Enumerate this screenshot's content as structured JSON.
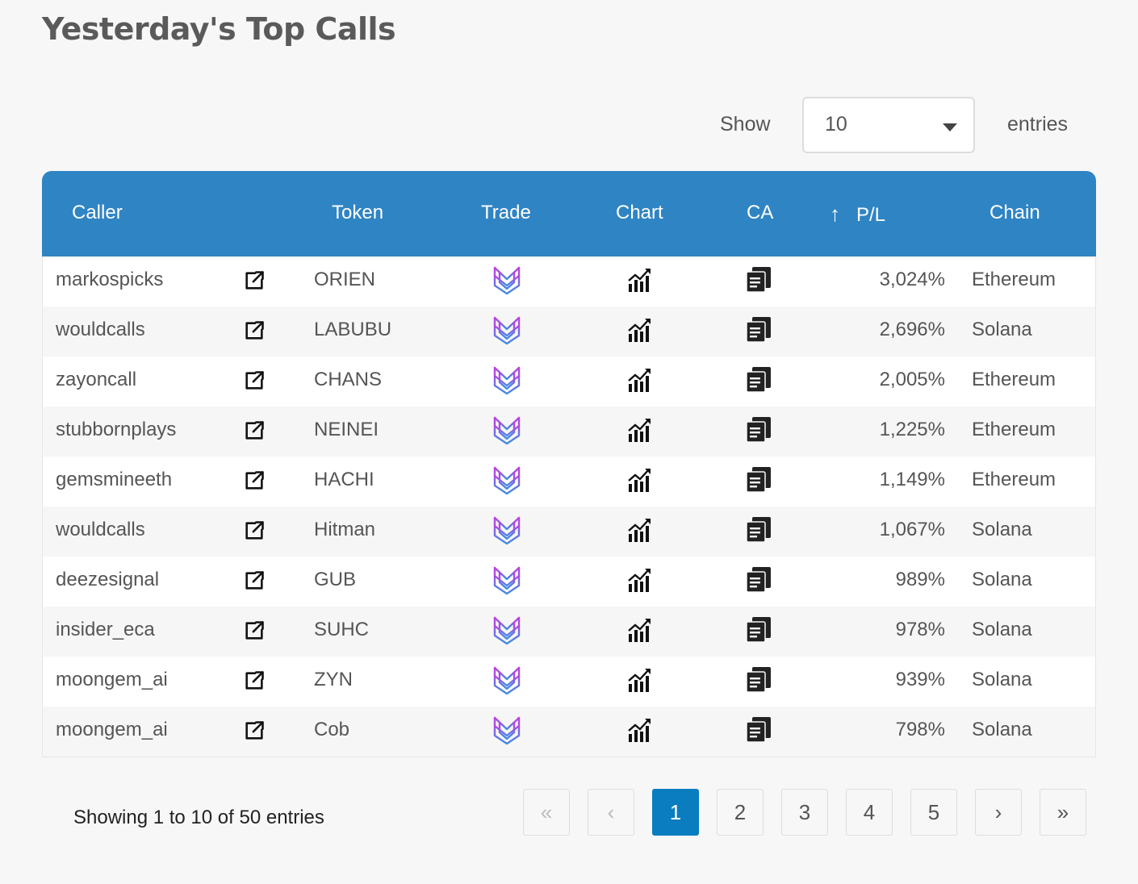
{
  "title": "Yesterday's Top Calls",
  "length_control": {
    "show_label": "Show",
    "selected": "10",
    "entries_label": "entries"
  },
  "columns": {
    "caller": "Caller",
    "token": "Token",
    "trade": "Trade",
    "chart": "Chart",
    "ca": "CA",
    "pl": "P/L",
    "chain": "Chain"
  },
  "sort": {
    "column": "P/L",
    "direction": "descending",
    "icon": "arrow-up-icon"
  },
  "rows": [
    {
      "caller": "markospicks",
      "token": "ORIEN",
      "pl": "3,024%",
      "chain": "Ethereum"
    },
    {
      "caller": "wouldcalls",
      "token": "LABUBU",
      "pl": "2,696%",
      "chain": "Solana"
    },
    {
      "caller": "zayoncall",
      "token": "CHANS",
      "pl": "2,005%",
      "chain": "Ethereum"
    },
    {
      "caller": "stubbornplays",
      "token": "NEINEI",
      "pl": "1,225%",
      "chain": "Ethereum"
    },
    {
      "caller": "gemsmineeth",
      "token": "HACHI",
      "pl": "1,149%",
      "chain": "Ethereum"
    },
    {
      "caller": "wouldcalls",
      "token": "Hitman",
      "pl": "1,067%",
      "chain": "Solana"
    },
    {
      "caller": "deezesignal",
      "token": "GUB",
      "pl": "989%",
      "chain": "Solana"
    },
    {
      "caller": "insider_eca",
      "token": "SUHC",
      "pl": "978%",
      "chain": "Solana"
    },
    {
      "caller": "moongem_ai",
      "token": "ZYN",
      "pl": "939%",
      "chain": "Solana"
    },
    {
      "caller": "moongem_ai",
      "token": "Cob",
      "pl": "798%",
      "chain": "Solana"
    }
  ],
  "row_icons": {
    "external": "external-link-icon",
    "trade": "trade-logo-icon",
    "chart": "chart-icon",
    "ca": "copy-icon"
  },
  "info": "Showing 1 to 10 of 50 entries",
  "pagination": {
    "first": "«",
    "prev": "‹",
    "pages": [
      "1",
      "2",
      "3",
      "4",
      "5"
    ],
    "current": "1",
    "next": "›",
    "last": "»"
  },
  "colors": {
    "header_bg": "#2f84c4",
    "active_page": "#0a7cc0",
    "trade_logo_a": "#b44ad8",
    "trade_logo_b": "#4a8ee0"
  }
}
